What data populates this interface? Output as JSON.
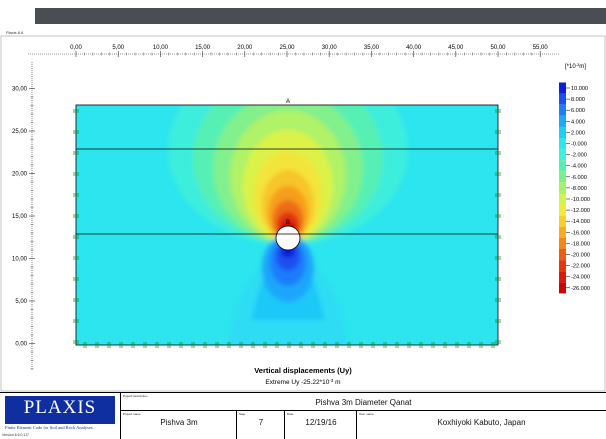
{
  "window": {
    "app_version_label": "Plaxis 8.6"
  },
  "plot": {
    "x_ticks": [
      "0,00",
      "5,00",
      "10,00",
      "15,00",
      "20,00",
      "25,00",
      "30,00",
      "35,00",
      "40,00",
      "45,00",
      "50,00",
      "55,00"
    ],
    "y_ticks": [
      "30,00",
      "25,00",
      "20,00",
      "15,00",
      "10,00",
      "5,00",
      "0,00"
    ],
    "unit_label": "[*10",
    "unit_exp": "-3",
    "unit_suffix": "m]",
    "point_a_label": "A",
    "point_b_label": "B",
    "title": "Vertical displacements (Uy)",
    "extreme_prefix": "Extreme Uy -25.22*10",
    "extreme_exp": "-3",
    "extreme_suffix": " m"
  },
  "legend": {
    "items": [
      {
        "value": "10.000",
        "color": "#0a1fd6"
      },
      {
        "value": "8.000",
        "color": "#1a4ff0"
      },
      {
        "value": "6.000",
        "color": "#1d7dfb"
      },
      {
        "value": "4.000",
        "color": "#1aa9fb"
      },
      {
        "value": "2.000",
        "color": "#1dd0f6"
      },
      {
        "value": "-0.000",
        "color": "#30e6ee"
      },
      {
        "value": "-2.000",
        "color": "#40f0d8"
      },
      {
        "value": "-4.000",
        "color": "#55f0b0"
      },
      {
        "value": "-6.000",
        "color": "#7ef08a"
      },
      {
        "value": "-8.000",
        "color": "#a9f266"
      },
      {
        "value": "-10.000",
        "color": "#d3f24c"
      },
      {
        "value": "-12.000",
        "color": "#f0ea3a"
      },
      {
        "value": "-14.000",
        "color": "#f8cf2a"
      },
      {
        "value": "-16.000",
        "color": "#f8ac1e"
      },
      {
        "value": "-18.000",
        "color": "#f58716"
      },
      {
        "value": "-20.000",
        "color": "#ef5e10"
      },
      {
        "value": "-22.000",
        "color": "#e6370c"
      },
      {
        "value": "-24.000",
        "color": "#dd1a08"
      },
      {
        "value": "-26.000",
        "color": "#cc0404"
      }
    ]
  },
  "titleblock": {
    "logo_text": "PLAXIS",
    "logo_tagline": "Finite Element Code for Soil and Rock Analyses",
    "version_text": "Version 8.6.0.117",
    "project_desc_caption": "Project description",
    "project_desc": "Pishva 3m Diameter Qanat",
    "project_name_caption": "Project name",
    "project_name": "Pishva 3m",
    "step_caption": "Step",
    "step": "7",
    "date_caption": "Date",
    "date": "12/19/16",
    "user_caption": "User name",
    "user": "Koxhiyoki Kabuto, Japan"
  },
  "colors": {
    "background": "#29e4f0",
    "frame": "#000000",
    "logo_blue": "#0f2fa0"
  }
}
